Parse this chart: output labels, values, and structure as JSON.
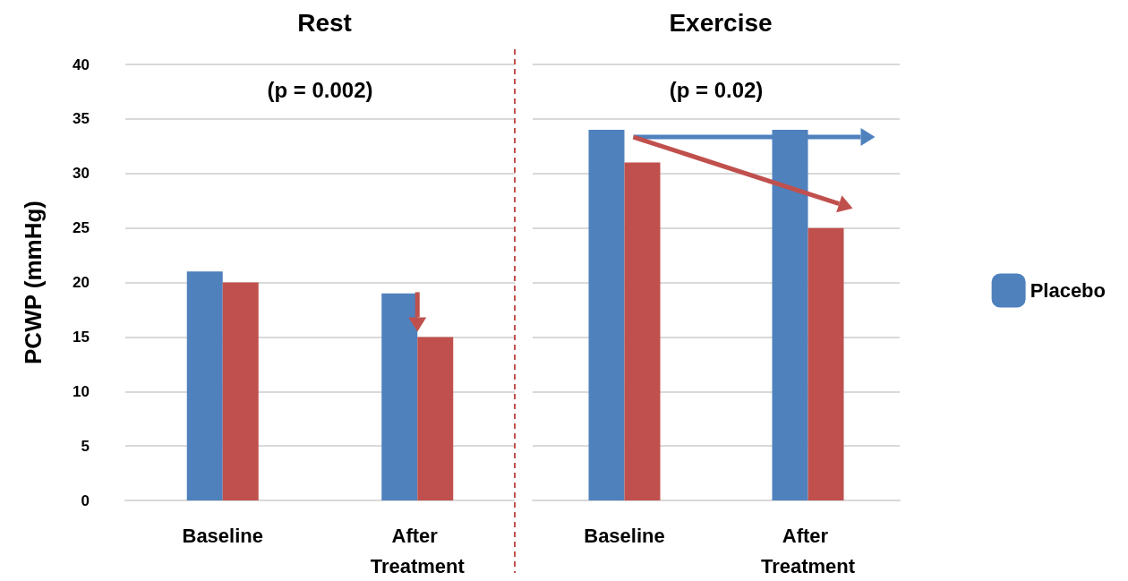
{
  "chart_data": [
    {
      "type": "bar",
      "title": "Rest",
      "annotations": [
        "(p = 0.002)"
      ],
      "ylabel": "PCWP (mmHg)",
      "categories": [
        "Baseline",
        "After Treatment"
      ],
      "series": [
        {
          "color": "#4f81bd",
          "values": [
            21,
            19
          ]
        },
        {
          "color": "#c0504d",
          "values": [
            20,
            15
          ]
        }
      ],
      "ylim": [
        0,
        40
      ],
      "yticks": [
        0,
        5,
        10,
        15,
        20,
        25,
        30,
        35,
        40
      ],
      "grid": "y",
      "legend": false
    },
    {
      "type": "bar",
      "title": "Exercise",
      "annotations": [
        "(p = 0.02)"
      ],
      "categories": [
        "Baseline",
        "After Treatment"
      ],
      "series": [
        {
          "name": "Placebo",
          "color": "#4f81bd",
          "values": [
            34,
            34
          ]
        },
        {
          "color": "#c0504d",
          "values": [
            31,
            25
          ]
        }
      ],
      "ylim": [
        0,
        40
      ],
      "yticks": [
        0,
        5,
        10,
        15,
        20,
        25,
        30,
        35,
        40
      ],
      "grid": "y",
      "legend": "right",
      "tick_labels": "x"
    }
  ]
}
